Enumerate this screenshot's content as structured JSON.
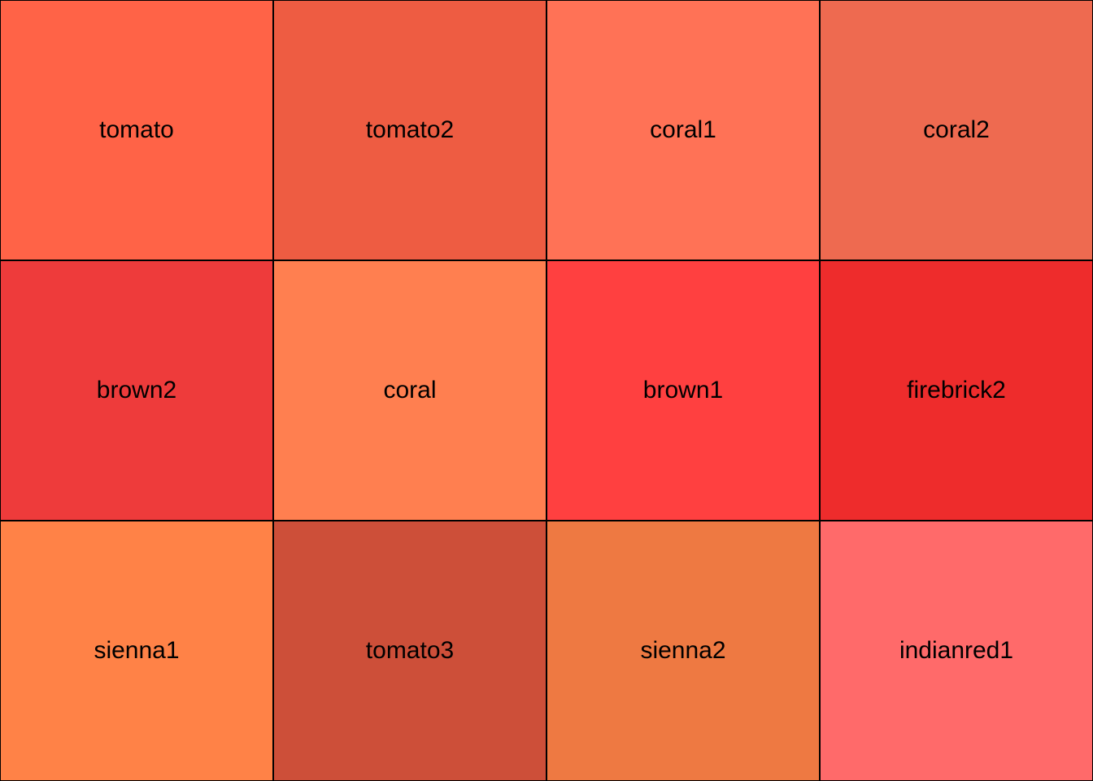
{
  "swatches": [
    {
      "label": "tomato",
      "color": "#FF6347"
    },
    {
      "label": "tomato2",
      "color": "#EE5C42"
    },
    {
      "label": "coral1",
      "color": "#FF7256"
    },
    {
      "label": "coral2",
      "color": "#EE6A50"
    },
    {
      "label": "brown2",
      "color": "#EE3B3B"
    },
    {
      "label": "coral",
      "color": "#FF7F50"
    },
    {
      "label": "brown1",
      "color": "#FF4040"
    },
    {
      "label": "firebrick2",
      "color": "#EE2C2C"
    },
    {
      "label": "sienna1",
      "color": "#FF8247"
    },
    {
      "label": "tomato3",
      "color": "#CD4F39"
    },
    {
      "label": "sienna2",
      "color": "#EE7942"
    },
    {
      "label": "indianred1",
      "color": "#FF6A6A"
    }
  ]
}
